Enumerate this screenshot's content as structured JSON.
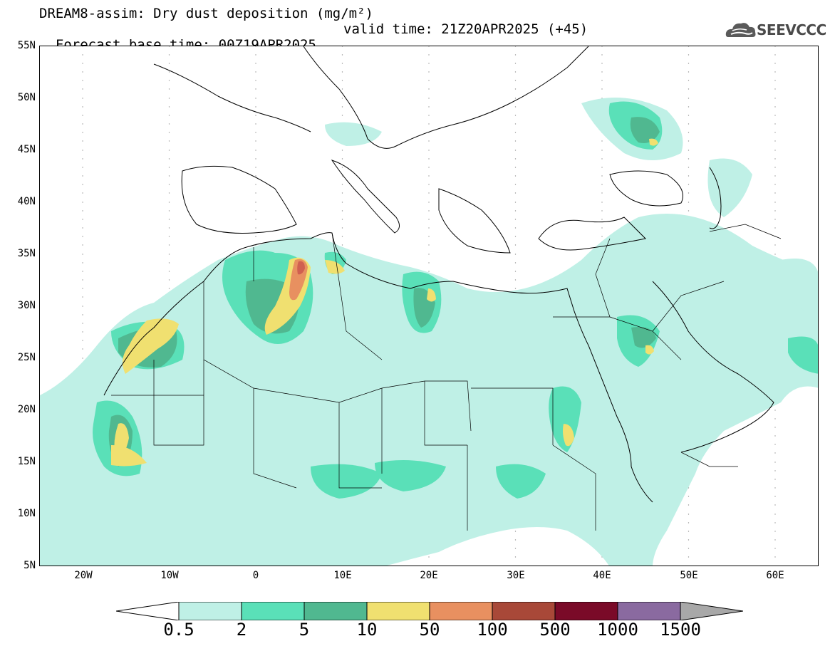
{
  "title": {
    "line1": "DREAM8-assim: Dry dust deposition (mg/m²)",
    "line2_base": "Forecast base time: 00Z19APR2025",
    "line2_valid": "valid time: 21Z20APR2025 (+45)"
  },
  "logo": {
    "text": "SEEVCCC",
    "icon": "cloud-icon"
  },
  "axes": {
    "lat_labels": [
      "55N",
      "50N",
      "45N",
      "40N",
      "35N",
      "30N",
      "25N",
      "20N",
      "15N",
      "10N",
      "5N"
    ],
    "lon_labels": [
      "20W",
      "10W",
      "0",
      "10E",
      "20E",
      "30E",
      "40E",
      "50E",
      "60E"
    ]
  },
  "colorbar": {
    "labels": [
      "0.5",
      "2",
      "5",
      "10",
      "50",
      "100",
      "500",
      "1000",
      "1500"
    ],
    "colors": [
      "#bff0e6",
      "#5ae0b8",
      "#50b890",
      "#f0e070",
      "#e89060",
      "#a84838",
      "#7a0a28",
      "#8a6aa0",
      "#a8a8a8"
    ]
  },
  "dust_levels": {
    "light": "#bff0e6",
    "low": "#5ae0b8",
    "mid": "#50b890",
    "high": "#f0e070",
    "vhigh": "#e89060",
    "extreme": "#d06050"
  }
}
